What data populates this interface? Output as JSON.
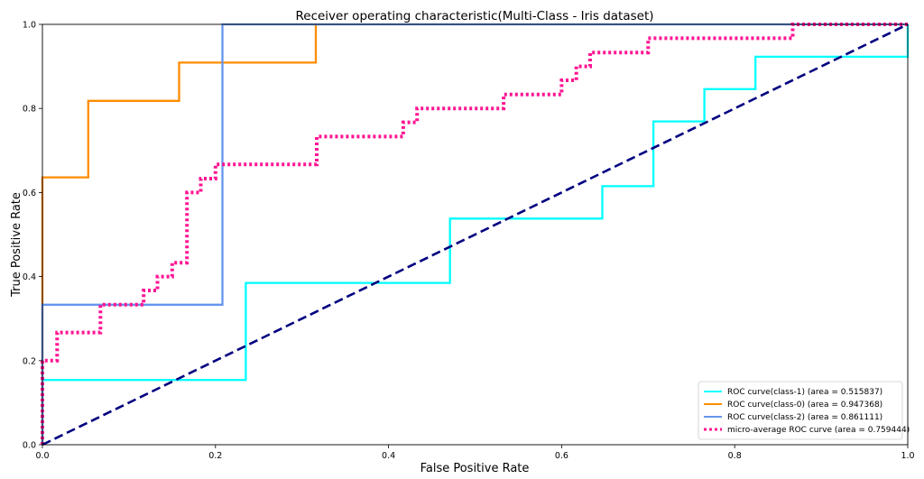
{
  "chart_data": {
    "type": "line",
    "title": "Receiver operating characteristic(Multi-Class - Iris dataset)",
    "xlabel": "False Positive Rate",
    "ylabel": "True Positive Rate",
    "xlim": [
      0.0,
      1.0
    ],
    "ylim": [
      0.0,
      1.0
    ],
    "xticks": [
      "0.0",
      "0.2",
      "0.4",
      "0.6",
      "0.8",
      "1.0"
    ],
    "yticks": [
      "0.0",
      "0.2",
      "0.4",
      "0.6",
      "0.8",
      "1.0"
    ],
    "grid": false,
    "legend_position": "lower-right",
    "series": [
      {
        "name": "ROC curve(class-1) (area = 0.515837)",
        "color": "#00ffff",
        "style": "solid",
        "x": [
          0,
          0,
          0.235,
          0.235,
          0.471,
          0.471,
          0.647,
          0.647,
          0.706,
          0.706,
          0.765,
          0.765,
          0.824,
          0.824,
          1.0,
          1.0
        ],
        "y": [
          0,
          0.154,
          0.154,
          0.385,
          0.385,
          0.538,
          0.538,
          0.615,
          0.615,
          0.769,
          0.769,
          0.846,
          0.846,
          0.923,
          0.923,
          1.0
        ]
      },
      {
        "name": "ROC curve(class-0) (area = 0.947368)",
        "color": "#ff8c00",
        "style": "solid",
        "x": [
          0,
          0,
          0.053,
          0.053,
          0.158,
          0.158,
          0.316,
          0.316
        ],
        "y": [
          0,
          0.636,
          0.636,
          0.818,
          0.818,
          0.909,
          0.909,
          1.0
        ]
      },
      {
        "name": "ROC curve(class-2) (area = 0.861111)",
        "color": "#6495ed",
        "style": "solid",
        "x": [
          0,
          0,
          0.208,
          0.208,
          1.0
        ],
        "y": [
          0,
          0.333,
          0.333,
          1.0,
          1.0
        ]
      },
      {
        "name": "micro-average ROC curve (area = 0.759444)",
        "color": "#ff1493",
        "style": "dotted",
        "x": [
          0,
          0,
          0.017,
          0.017,
          0.067,
          0.067,
          0.117,
          0.117,
          0.133,
          0.133,
          0.15,
          0.15,
          0.167,
          0.167,
          0.183,
          0.183,
          0.2,
          0.2,
          0.317,
          0.317,
          0.417,
          0.417,
          0.433,
          0.433,
          0.533,
          0.533,
          0.6,
          0.6,
          0.617,
          0.617,
          0.633,
          0.633,
          0.7,
          0.7,
          0.867,
          0.867,
          1.0
        ],
        "y": [
          0,
          0.2,
          0.2,
          0.267,
          0.267,
          0.333,
          0.333,
          0.367,
          0.367,
          0.4,
          0.4,
          0.433,
          0.433,
          0.6,
          0.6,
          0.633,
          0.633,
          0.667,
          0.667,
          0.733,
          0.733,
          0.767,
          0.767,
          0.8,
          0.8,
          0.833,
          0.833,
          0.867,
          0.867,
          0.9,
          0.9,
          0.933,
          0.933,
          0.967,
          0.967,
          1.0,
          1.0
        ]
      },
      {
        "name": "",
        "color": "#000080",
        "style": "dashed",
        "x": [
          0,
          1
        ],
        "y": [
          0,
          1
        ]
      }
    ]
  }
}
